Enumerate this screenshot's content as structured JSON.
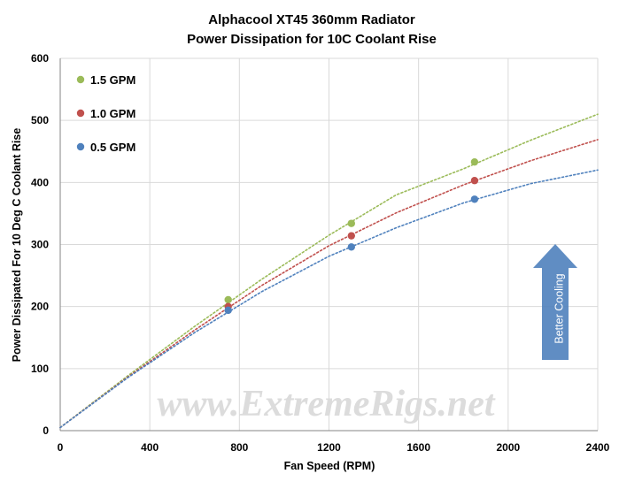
{
  "chart_data": {
    "type": "scatter",
    "title": "Alphacool  XT45  360mm Radiator",
    "subtitle": "Power Dissipation  for 10C Coolant  Rise",
    "xlabel": "Fan Speed (RPM)",
    "ylabel": "Power Dissipated For 10 Deg C Coolant Rise",
    "xlim": [
      0,
      2400
    ],
    "ylim": [
      0,
      600
    ],
    "xticks": [
      "0",
      "400",
      "800",
      "1200",
      "1600",
      "2000",
      "2400"
    ],
    "yticks": [
      "0",
      "100",
      "200",
      "300",
      "400",
      "500",
      "600"
    ],
    "grid": true,
    "legend_position": "top-left",
    "trendline": "dotted polynomial",
    "series": [
      {
        "name": "1.5 GPM",
        "color": "#9bbb59",
        "points": [
          [
            750,
            211
          ],
          [
            1300,
            334
          ],
          [
            1850,
            433
          ]
        ],
        "trend": [
          [
            0,
            5
          ],
          [
            300,
            88
          ],
          [
            600,
            168
          ],
          [
            900,
            244
          ],
          [
            1200,
            315
          ],
          [
            1500,
            380
          ],
          [
            1800,
            422
          ],
          [
            2100,
            468
          ],
          [
            2400,
            510
          ]
        ]
      },
      {
        "name": "1.0 GPM",
        "color": "#c0504d",
        "points": [
          [
            750,
            200
          ],
          [
            1300,
            314
          ],
          [
            1850,
            403
          ]
        ],
        "trend": [
          [
            0,
            5
          ],
          [
            300,
            86
          ],
          [
            600,
            162
          ],
          [
            900,
            234
          ],
          [
            1200,
            298
          ],
          [
            1500,
            351
          ],
          [
            1800,
            396
          ],
          [
            2100,
            435
          ],
          [
            2400,
            469
          ]
        ]
      },
      {
        "name": "0.5 GPM",
        "color": "#4f81bd",
        "points": [
          [
            750,
            194
          ],
          [
            1300,
            296
          ],
          [
            1850,
            373
          ]
        ],
        "trend": [
          [
            0,
            5
          ],
          [
            300,
            85
          ],
          [
            600,
            158
          ],
          [
            900,
            224
          ],
          [
            1200,
            281
          ],
          [
            1500,
            327
          ],
          [
            1800,
            367
          ],
          [
            2100,
            398
          ],
          [
            2400,
            420
          ]
        ]
      }
    ],
    "annotation": "Better Cooling",
    "watermark": "www.ExtremeRigs.net"
  },
  "colors": {
    "arrow_fill": "#4f81bd",
    "grid": "#d9d9d9"
  }
}
